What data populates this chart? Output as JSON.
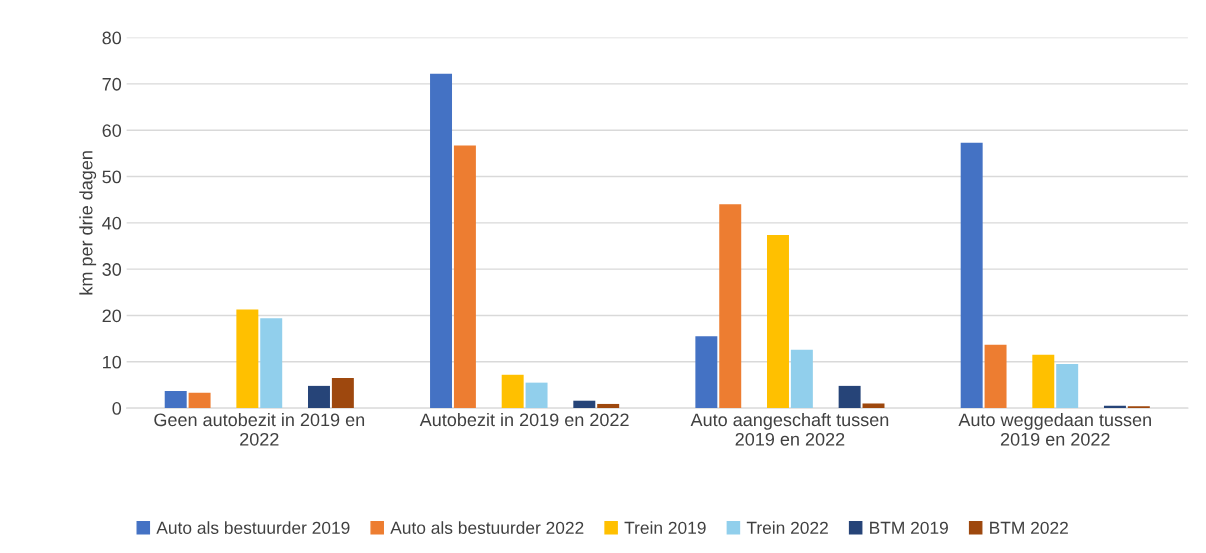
{
  "chart_data": {
    "type": "bar",
    "ylabel": "km per drie dagen",
    "categories": [
      "Geen autobezit in 2019 en 2022",
      "Autobezit in 2019 en 2022",
      "Auto aangeschaft tussen 2019 en 2022",
      "Auto weggedaan tussen 2019 en 2022"
    ],
    "series": [
      {
        "name": "Auto als bestuurder 2019",
        "color": "#4472c4",
        "values": [
          3.7,
          72.2,
          15.5,
          57.3
        ]
      },
      {
        "name": "Auto als bestuurder 2022",
        "color": "#ed7d31",
        "values": [
          3.3,
          56.7,
          44.0,
          13.7
        ]
      },
      {
        "name": "Trein 2019",
        "color": "#ffc000",
        "values": [
          21.3,
          7.2,
          37.4,
          11.5
        ]
      },
      {
        "name": "Trein 2022",
        "color": "#91cfec",
        "values": [
          19.4,
          5.5,
          12.6,
          9.5
        ]
      },
      {
        "name": "BTM 2019",
        "color": "#264478",
        "values": [
          4.8,
          1.6,
          4.8,
          0.5
        ]
      },
      {
        "name": "BTM 2022",
        "color": "#9e480e",
        "values": [
          6.5,
          0.9,
          1.0,
          0.4
        ]
      }
    ],
    "ylim": [
      0,
      80
    ],
    "yticks": [
      0,
      10,
      20,
      30,
      40,
      50,
      60,
      70,
      80
    ],
    "grid": "y",
    "legend": "bottom"
  }
}
